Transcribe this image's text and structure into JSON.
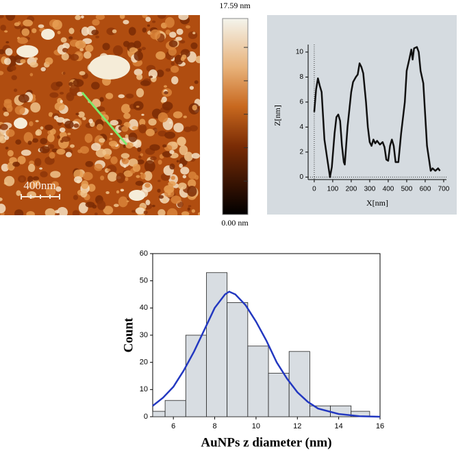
{
  "afm_image": {
    "scale_bar": "400nm",
    "colorbar": {
      "clim": [
        0,
        17.59
      ],
      "ticks": [
        {
          "value": 0,
          "label": "0.00 nm"
        },
        3,
        6,
        9,
        12,
        15,
        {
          "value": 17.59,
          "label": "17.59 nm"
        }
      ]
    }
  },
  "chart_data": [
    {
      "type": "line",
      "xlabel": "X[nm]",
      "ylabel": "Z[nm]",
      "x": [
        0,
        10,
        20,
        30,
        40,
        55,
        70,
        85,
        95,
        110,
        120,
        130,
        140,
        150,
        160,
        165,
        180,
        200,
        210,
        225,
        235,
        245,
        255,
        265,
        280,
        290,
        300,
        310,
        320,
        330,
        340,
        355,
        370,
        380,
        390,
        400,
        410,
        420,
        430,
        440,
        455,
        470,
        490,
        500,
        515,
        525,
        532,
        540,
        555,
        565,
        575,
        590,
        600,
        610,
        620,
        630,
        640,
        655,
        670,
        680
      ],
      "series": [
        {
          "color": "#111111",
          "values": [
            5.2,
            7,
            7.9,
            7.3,
            6.8,
            3,
            1.5,
            0,
            0.8,
            3.5,
            4.8,
            5,
            4.5,
            2.5,
            1.2,
            1,
            4,
            6.8,
            7.6,
            8,
            8.2,
            9.1,
            8.8,
            8.3,
            6,
            4,
            2.8,
            2.5,
            3,
            2.7,
            2.9,
            2.6,
            2.8,
            2.4,
            1.4,
            1.3,
            2.5,
            3,
            2.5,
            1.2,
            1.2,
            3.5,
            6,
            8.5,
            9.5,
            10.2,
            9.4,
            10.3,
            10.4,
            10,
            8.5,
            7.5,
            5,
            2.5,
            1.5,
            0.5,
            0.7,
            0.5,
            0.7,
            0.5
          ]
        }
      ],
      "xlim": [
        -33,
        715
      ],
      "ylim": [
        -0.2,
        10.6
      ],
      "xticks": [
        0,
        100,
        200,
        300,
        400,
        500,
        600,
        700
      ],
      "yticks": [
        0,
        2,
        4,
        6,
        8,
        10
      ]
    },
    {
      "type": "histogram",
      "xlabel": "AuNPs z diameter (nm)",
      "ylabel": "Count",
      "bins": [
        5,
        5.6,
        6.6,
        7.6,
        8.6,
        9.6,
        10.6,
        11.6,
        12.6,
        13.6,
        14.6,
        15.5
      ],
      "counts": [
        2,
        6,
        30,
        53,
        42,
        26,
        16,
        24,
        4,
        4,
        2
      ],
      "color": "#d8dde2",
      "fit": {
        "color": "#2338c0",
        "x": [
          5,
          5.5,
          6,
          6.5,
          7,
          7.5,
          8,
          8.5,
          8.7,
          9,
          9.5,
          10,
          10.5,
          11,
          11.5,
          12,
          12.5,
          13,
          14,
          15,
          16
        ],
        "values": [
          4,
          7,
          11,
          17,
          24,
          32,
          40,
          45,
          46,
          45,
          41,
          35,
          28,
          20,
          14,
          9,
          5.5,
          3,
          1,
          0.2,
          0
        ]
      },
      "xlim": [
        5,
        16
      ],
      "ylim": [
        0,
        60
      ],
      "xticks": [
        6,
        8,
        10,
        12,
        14,
        16
      ],
      "yticks": [
        0,
        10,
        20,
        30,
        40,
        50,
        60
      ]
    }
  ]
}
